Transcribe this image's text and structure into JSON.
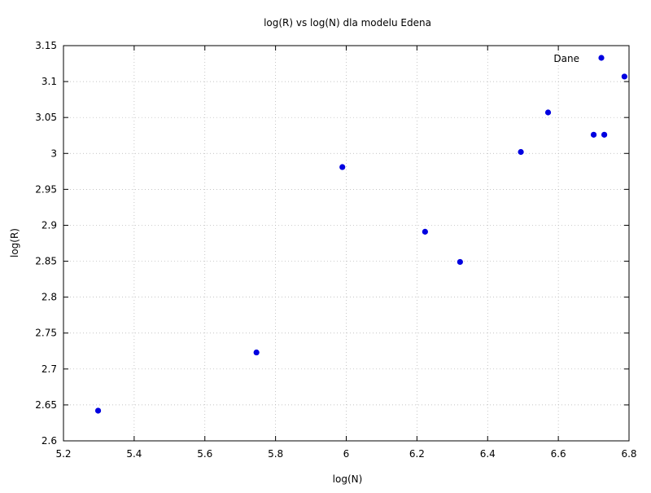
{
  "chart_data": {
    "type": "scatter",
    "title": "log(R) vs log(N) dla modelu Edena",
    "xlabel": "log(N)",
    "ylabel": "log(R)",
    "xlim": [
      5.2,
      6.8
    ],
    "ylim": [
      2.6,
      3.15
    ],
    "xticks": [
      5.2,
      5.4,
      5.6,
      5.8,
      6.0,
      6.2,
      6.4,
      6.6,
      6.8
    ],
    "xtick_labels": [
      "5.2",
      "5.4",
      "5.6",
      "5.8",
      "6",
      "6.2",
      "6.4",
      "6.6",
      "6.8"
    ],
    "yticks": [
      2.6,
      2.65,
      2.7,
      2.75,
      2.8,
      2.85,
      2.9,
      2.95,
      3.0,
      3.05,
      3.1,
      3.15
    ],
    "ytick_labels": [
      "2.6",
      "2.65",
      "2.7",
      "2.75",
      "2.8",
      "2.85",
      "2.9",
      "2.95",
      "3",
      "3.05",
      "3.1",
      "3.15"
    ],
    "grid": true,
    "legend_position": "top-right",
    "series": [
      {
        "name": "Dane",
        "color": "#0000e0",
        "points": [
          {
            "x": 5.298,
            "y": 2.642
          },
          {
            "x": 5.746,
            "y": 2.723
          },
          {
            "x": 5.989,
            "y": 2.981
          },
          {
            "x": 6.223,
            "y": 2.891
          },
          {
            "x": 6.322,
            "y": 2.849
          },
          {
            "x": 6.494,
            "y": 3.002
          },
          {
            "x": 6.571,
            "y": 3.057
          },
          {
            "x": 6.7,
            "y": 3.026
          },
          {
            "x": 6.73,
            "y": 3.026
          },
          {
            "x": 6.787,
            "y": 3.107
          }
        ]
      }
    ]
  }
}
